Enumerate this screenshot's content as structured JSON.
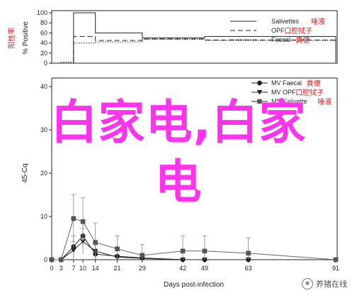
{
  "chart_data": [
    {
      "type": "line",
      "step": true,
      "ylabel": "% Positive",
      "ylabel_note": "阳性率",
      "ylim": [
        0,
        100
      ],
      "yticks": [
        0,
        20,
        40,
        60,
        80,
        100
      ],
      "xlim": [
        0,
        91
      ],
      "grid": false,
      "legend_position": "top-right",
      "series": [
        {
          "name": "Salivettes",
          "note": "唾液",
          "style": "solid",
          "points": [
            [
              0,
              0
            ],
            [
              3,
              0
            ],
            [
              7,
              100
            ],
            [
              10,
              100
            ],
            [
              14,
              60
            ],
            [
              21,
              60
            ],
            [
              29,
              50
            ],
            [
              42,
              50
            ],
            [
              49,
              53
            ],
            [
              63,
              53
            ],
            [
              91,
              0
            ]
          ]
        },
        {
          "name": "OPF",
          "note": "口腔拭子",
          "style": "dashed",
          "points": [
            [
              0,
              0
            ],
            [
              3,
              0
            ],
            [
              7,
              53
            ],
            [
              10,
              53
            ],
            [
              14,
              45
            ],
            [
              21,
              45
            ],
            [
              29,
              48
            ],
            [
              42,
              48
            ],
            [
              49,
              46
            ],
            [
              63,
              46
            ],
            [
              91,
              0
            ]
          ]
        },
        {
          "name": "Faecal",
          "note": "粪便",
          "style": "dotted",
          "points": [
            [
              0,
              0
            ],
            [
              3,
              2
            ],
            [
              7,
              40
            ],
            [
              10,
              40
            ],
            [
              14,
              42
            ],
            [
              21,
              42
            ],
            [
              29,
              47
            ],
            [
              42,
              47
            ],
            [
              49,
              45
            ],
            [
              63,
              45
            ],
            [
              91,
              0
            ]
          ]
        }
      ]
    },
    {
      "type": "line",
      "ylabel": "45-Cq",
      "xlabel": "Days post-infection",
      "ylim": [
        0,
        40
      ],
      "yticks": [
        0,
        10,
        20,
        30,
        40
      ],
      "xticks": [
        0,
        3,
        7,
        10,
        14,
        21,
        29,
        42,
        49,
        63,
        91
      ],
      "grid": false,
      "legend_position": "top-right",
      "series": [
        {
          "name": "MV Faecal",
          "note": "粪便",
          "marker": "circle",
          "x": [
            0,
            3,
            7,
            10,
            14,
            21,
            29,
            42,
            49,
            63,
            91
          ],
          "y": [
            0,
            0,
            3,
            5.5,
            1.3,
            0.8,
            0.4,
            0,
            0,
            0,
            0
          ],
          "err": [
            0,
            0,
            2.5,
            3,
            2,
            1.5,
            1,
            0,
            0,
            0,
            0
          ]
        },
        {
          "name": "MV OPF",
          "note": "口腔拭子",
          "marker": "triangle-down",
          "x": [
            0,
            3,
            7,
            10,
            14,
            21,
            29,
            42,
            49,
            63,
            91
          ],
          "y": [
            0,
            0,
            2.2,
            4.2,
            2,
            0.6,
            0.3,
            0,
            0,
            0,
            0
          ],
          "err": [
            0,
            0,
            2,
            3,
            2,
            1.5,
            1,
            0,
            0,
            0,
            0
          ]
        },
        {
          "name": "MV Salivette",
          "note": "唾液",
          "marker": "square",
          "x": [
            0,
            3,
            7,
            10,
            14,
            21,
            29,
            42,
            49,
            63,
            91
          ],
          "y": [
            0,
            0,
            9.5,
            8.8,
            4,
            2.5,
            1,
            2,
            2,
            1.5,
            0
          ],
          "err": [
            0,
            0,
            5.5,
            5.5,
            4.5,
            3,
            2.5,
            3.5,
            3.5,
            3.5,
            0
          ]
        }
      ]
    }
  ],
  "overlay": {
    "line1": "白家电,白家",
    "line2": "电"
  },
  "watermark": {
    "text": "养猪在线"
  },
  "colors": {
    "overlay": "#ff33ee",
    "note": "#cc2222",
    "ink": "#222222"
  }
}
